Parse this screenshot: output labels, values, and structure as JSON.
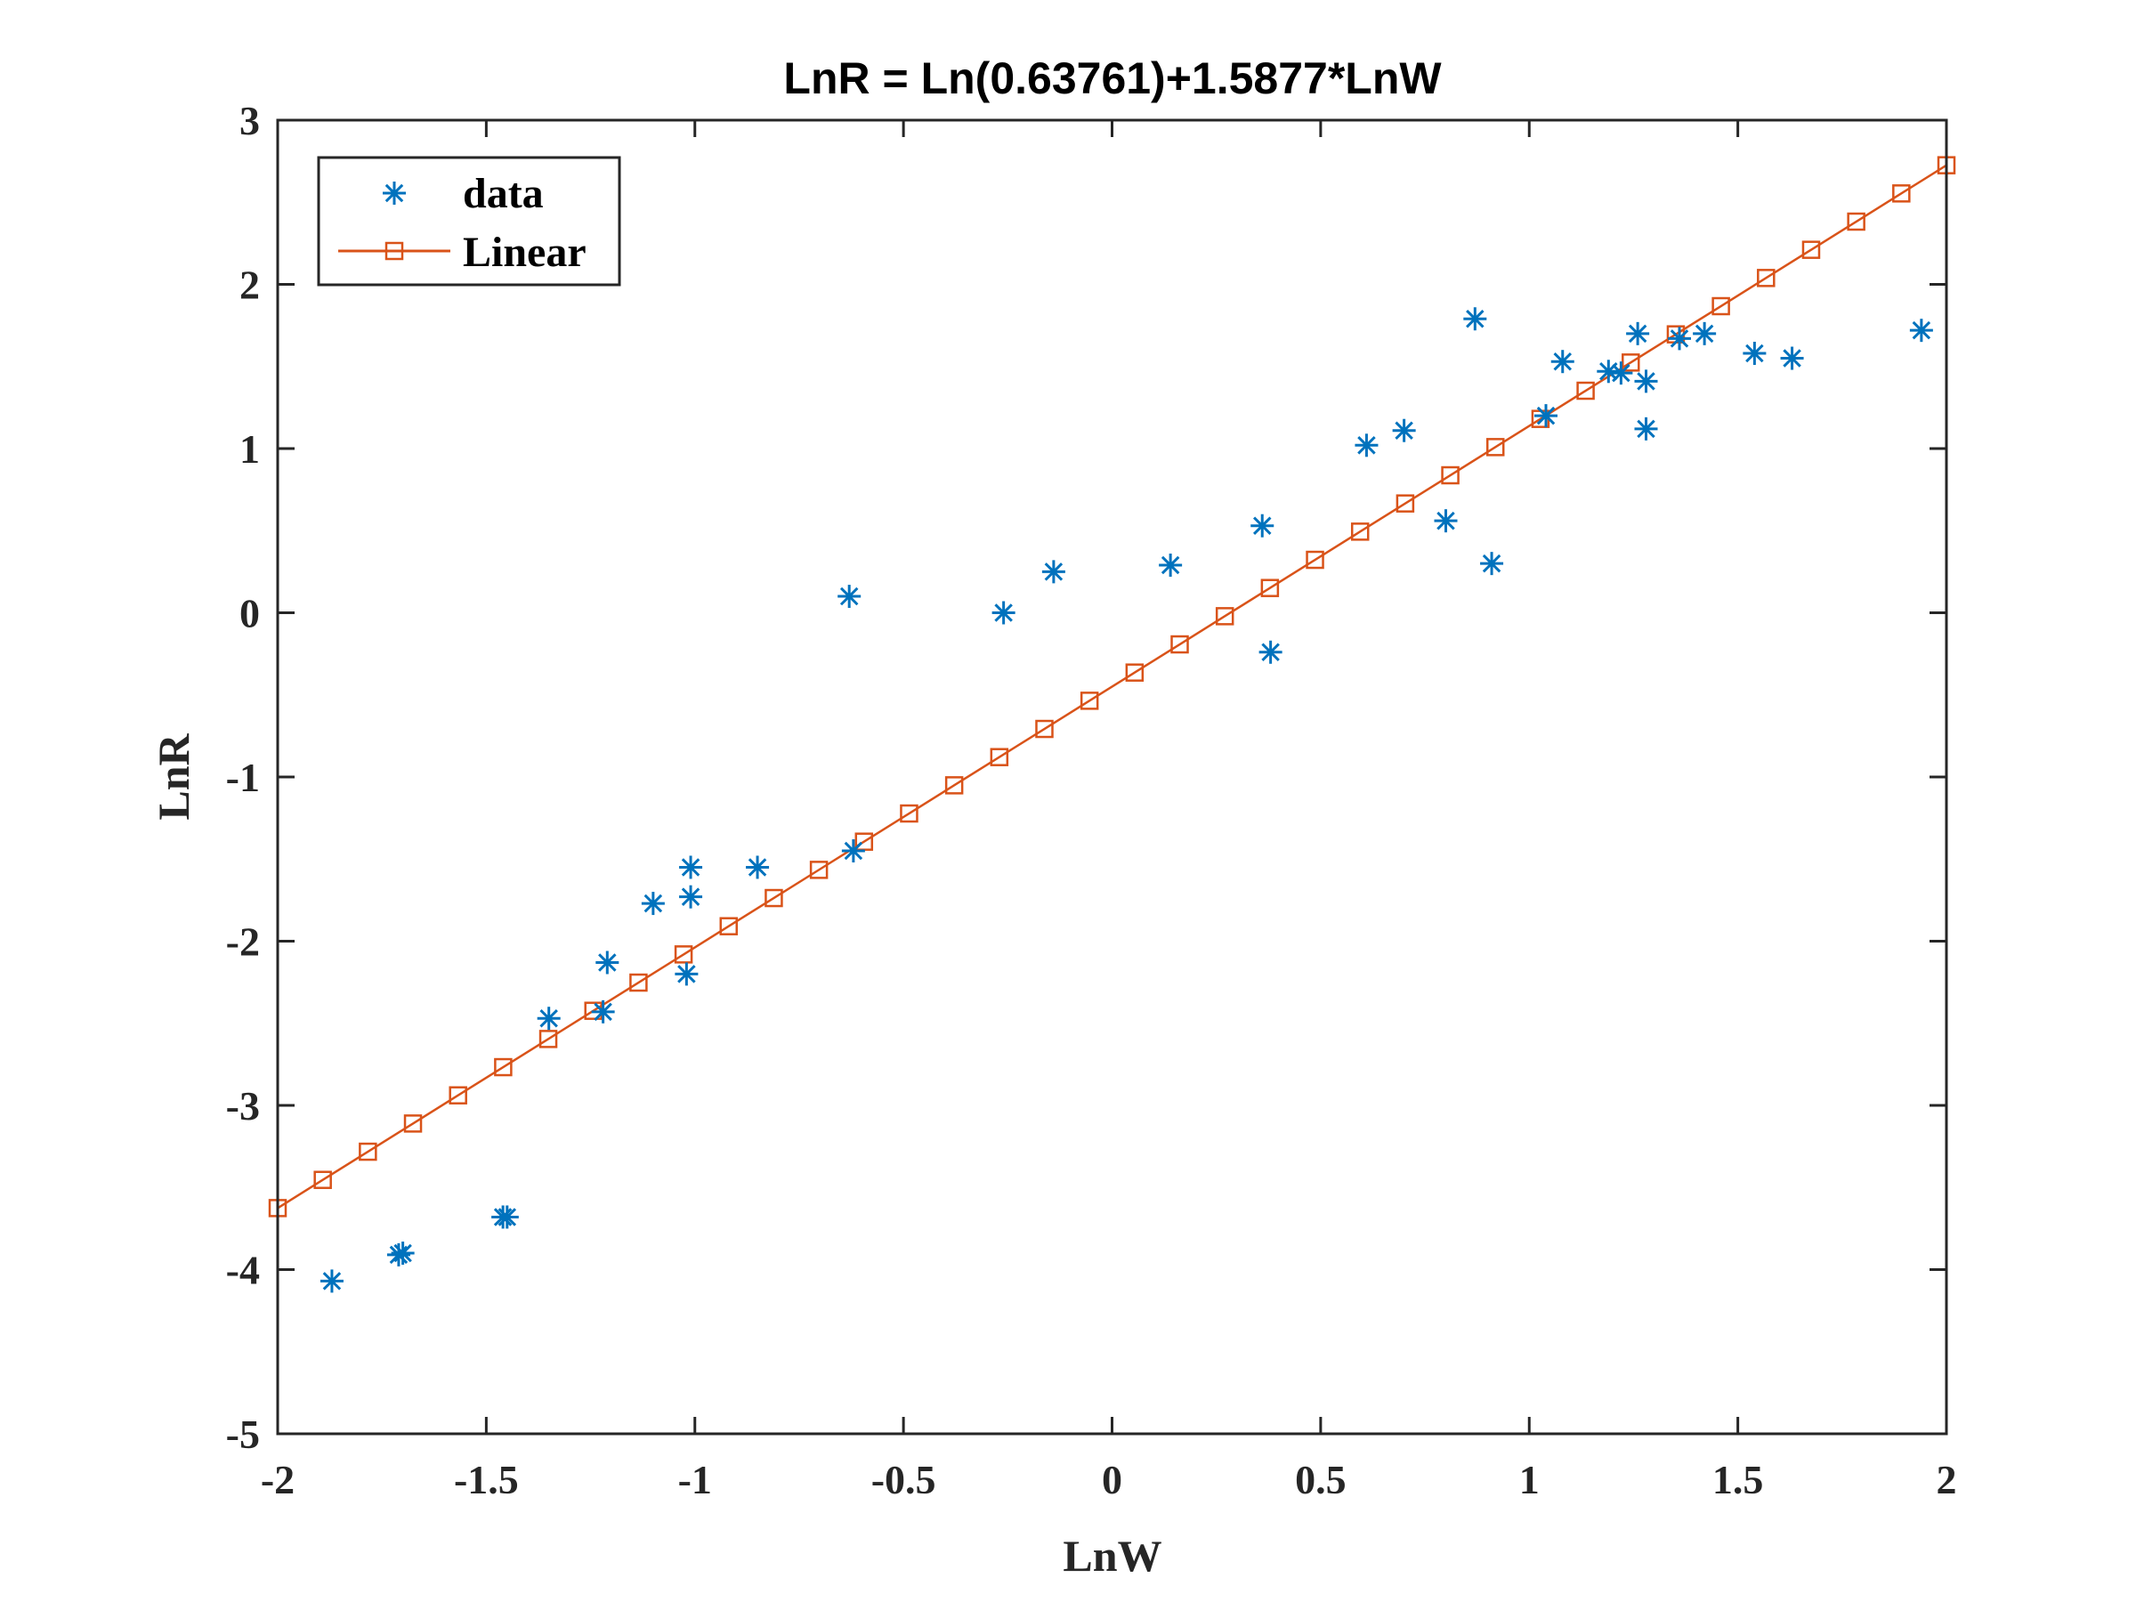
{
  "chart_data": {
    "type": "scatter",
    "title": "LnR = Ln(0.63761)+1.5877*LnW",
    "xlabel": "LnW",
    "ylabel": "LnR",
    "xlim": [
      -2,
      2
    ],
    "ylim": [
      -5,
      3
    ],
    "xticks": [
      -2,
      -1.5,
      -1,
      -0.5,
      0,
      0.5,
      1,
      1.5,
      2
    ],
    "yticks": [
      -5,
      -4,
      -3,
      -2,
      -1,
      0,
      1,
      2,
      3
    ],
    "xtick_labels": [
      "-2",
      "-1.5",
      "-1",
      "-0.5",
      "0",
      "0.5",
      "1",
      "1.5",
      "2"
    ],
    "ytick_labels": [
      "-5",
      "-4",
      "-3",
      "-2",
      "-1",
      "0",
      "1",
      "2",
      "3"
    ],
    "grid": false,
    "legend_position": "top-left",
    "series": [
      {
        "name": "data",
        "marker": "asterisk",
        "color": "#0072BD",
        "points": [
          [
            -1.87,
            -4.07
          ],
          [
            -1.71,
            -3.91
          ],
          [
            -1.7,
            -3.9
          ],
          [
            -1.46,
            -3.68
          ],
          [
            -1.45,
            -3.68
          ],
          [
            -1.35,
            -2.47
          ],
          [
            -1.22,
            -2.43
          ],
          [
            -1.21,
            -2.13
          ],
          [
            -1.1,
            -1.77
          ],
          [
            -1.02,
            -2.2
          ],
          [
            -1.01,
            -1.73
          ],
          [
            -1.01,
            -1.55
          ],
          [
            -0.85,
            -1.55
          ],
          [
            -0.62,
            -1.45
          ],
          [
            -0.63,
            0.1
          ],
          [
            -0.26,
            0.0
          ],
          [
            -0.14,
            0.25
          ],
          [
            0.14,
            0.29
          ],
          [
            0.36,
            0.53
          ],
          [
            0.38,
            -0.24
          ],
          [
            0.61,
            1.02
          ],
          [
            0.7,
            1.11
          ],
          [
            0.8,
            0.56
          ],
          [
            0.87,
            1.79
          ],
          [
            0.91,
            0.3
          ],
          [
            1.04,
            1.2
          ],
          [
            1.08,
            1.53
          ],
          [
            1.19,
            1.47
          ],
          [
            1.22,
            1.46
          ],
          [
            1.26,
            1.7
          ],
          [
            1.28,
            1.41
          ],
          [
            1.28,
            1.12
          ],
          [
            1.36,
            1.67
          ],
          [
            1.42,
            1.7
          ],
          [
            1.54,
            1.58
          ],
          [
            1.63,
            1.55
          ],
          [
            1.94,
            1.72
          ]
        ]
      },
      {
        "name": "Linear",
        "marker": "square",
        "color": "#D95319",
        "intercept_factor": 0.63761,
        "slope": 1.5877,
        "x_start": -2,
        "x_end": 2,
        "num_points": 38
      }
    ]
  }
}
